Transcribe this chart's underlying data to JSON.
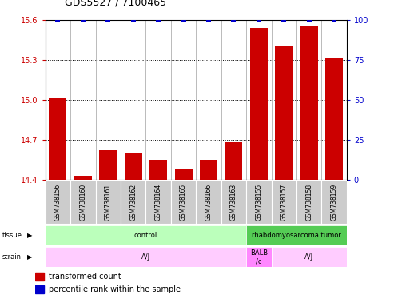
{
  "title": "GDS5527 / 7100465",
  "samples": [
    "GSM738156",
    "GSM738160",
    "GSM738161",
    "GSM738162",
    "GSM738164",
    "GSM738165",
    "GSM738166",
    "GSM738163",
    "GSM738155",
    "GSM738157",
    "GSM738158",
    "GSM738159"
  ],
  "bar_values": [
    15.01,
    14.43,
    14.62,
    14.6,
    14.55,
    14.48,
    14.55,
    14.68,
    15.54,
    15.4,
    15.56,
    15.31
  ],
  "percentile_y_values": [
    100,
    100,
    100,
    100,
    100,
    100,
    100,
    100,
    100,
    100,
    100,
    100
  ],
  "ylim_min": 14.4,
  "ylim_max": 15.6,
  "yticks_left": [
    14.4,
    14.7,
    15.0,
    15.3,
    15.6
  ],
  "yticks_right": [
    0,
    25,
    50,
    75,
    100
  ],
  "bar_color": "#cc0000",
  "percentile_color": "#0000cc",
  "tissue_data": [
    {
      "label": "control",
      "start": 0,
      "end": 8,
      "color": "#bbffbb"
    },
    {
      "label": "rhabdomyosarcoma tumor",
      "start": 8,
      "end": 12,
      "color": "#55cc55"
    }
  ],
  "strain_data": [
    {
      "label": "A/J",
      "start": 0,
      "end": 8,
      "color": "#ffccff"
    },
    {
      "label": "BALB\n/c",
      "start": 8,
      "end": 9,
      "color": "#ff88ff"
    },
    {
      "label": "A/J",
      "start": 9,
      "end": 12,
      "color": "#ffccff"
    }
  ],
  "legend_bar_label": "transformed count",
  "legend_perc_label": "percentile rank within the sample",
  "tissue_label": "tissue",
  "strain_label": "strain",
  "sample_box_color": "#cccccc",
  "title_fontsize": 9,
  "axis_fontsize": 7,
  "label_fontsize": 5.5,
  "row_fontsize": 6,
  "legend_fontsize": 7
}
